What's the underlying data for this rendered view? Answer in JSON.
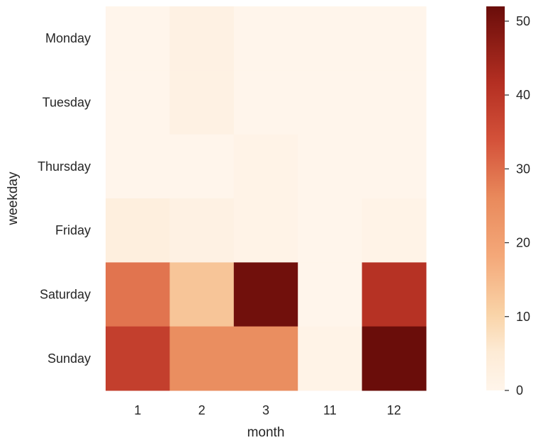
{
  "chart_data": {
    "type": "heatmap",
    "xlabel": "month",
    "ylabel": "weekday",
    "x_categories": [
      "1",
      "2",
      "3",
      "11",
      "12"
    ],
    "y_categories": [
      "Monday",
      "Tuesday",
      "Thursday",
      "Friday",
      "Saturday",
      "Sunday"
    ],
    "values": [
      [
        0,
        2,
        0,
        0,
        0
      ],
      [
        0,
        2,
        0,
        0,
        0
      ],
      [
        0,
        0,
        1,
        0,
        0
      ],
      [
        3,
        2,
        1,
        0,
        1
      ],
      [
        29,
        13,
        51,
        0,
        41
      ],
      [
        38,
        25,
        25,
        1,
        52
      ]
    ],
    "colorbar": {
      "ticks": [
        0,
        10,
        20,
        30,
        40,
        50
      ],
      "tick_labels": [
        "0",
        "10",
        "20",
        "30",
        "40",
        "50"
      ],
      "range": [
        0,
        52
      ]
    },
    "colormap": {
      "name": "OrRd-like",
      "stops": [
        [
          0.0,
          "#fff5eb"
        ],
        [
          0.1,
          "#fdebd5"
        ],
        [
          0.2,
          "#f9d3a7"
        ],
        [
          0.35,
          "#f4a879"
        ],
        [
          0.5,
          "#e98a5c"
        ],
        [
          0.65,
          "#d4523a"
        ],
        [
          0.8,
          "#b42f22"
        ],
        [
          1.0,
          "#6a0d0a"
        ]
      ]
    },
    "grid": false
  }
}
